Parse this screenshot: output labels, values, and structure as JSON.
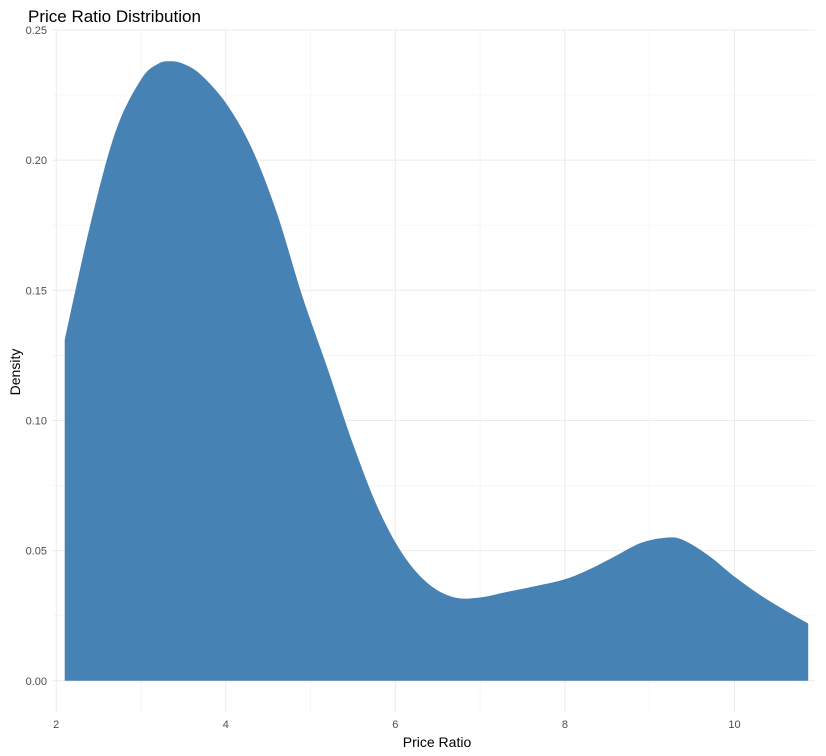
{
  "chart_data": {
    "type": "area",
    "title": "Price Ratio Distribution",
    "xlabel": "Price Ratio",
    "ylabel": "Density",
    "xlim": [
      1.95,
      10.95
    ],
    "ylim": [
      -0.012,
      0.25
    ],
    "x_ticks": [
      2,
      4,
      6,
      8,
      10
    ],
    "x_tick_labels": [
      "2",
      "4",
      "6",
      "8",
      "10"
    ],
    "y_ticks": [
      0,
      0.05,
      0.1,
      0.15,
      0.2,
      0.25
    ],
    "y_tick_labels": [
      "0.00",
      "0.05",
      "0.10",
      "0.15",
      "0.20",
      "0.25"
    ],
    "grid": true,
    "fill_color": "#4682b4",
    "series": [
      {
        "x": [
          2.1,
          2.4,
          2.7,
          3.0,
          3.2,
          3.35,
          3.5,
          3.7,
          4.0,
          4.3,
          4.6,
          4.9,
          5.2,
          5.5,
          5.8,
          6.1,
          6.4,
          6.7,
          7.0,
          7.3,
          7.6,
          8.0,
          8.3,
          8.6,
          8.9,
          9.2,
          9.4,
          9.7,
          10.0,
          10.3,
          10.6,
          10.87
        ],
        "y": [
          0.131,
          0.175,
          0.211,
          0.231,
          0.237,
          0.238,
          0.237,
          0.233,
          0.222,
          0.205,
          0.18,
          0.148,
          0.12,
          0.091,
          0.066,
          0.048,
          0.037,
          0.032,
          0.032,
          0.034,
          0.036,
          0.039,
          0.043,
          0.048,
          0.053,
          0.055,
          0.054,
          0.048,
          0.04,
          0.033,
          0.027,
          0.022
        ]
      }
    ]
  }
}
